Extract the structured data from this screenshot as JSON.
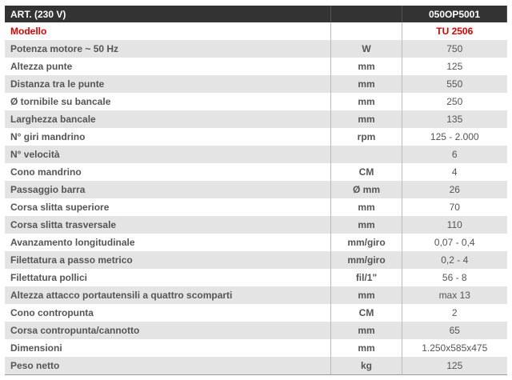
{
  "header": {
    "label": "ART. (230 V)",
    "unit": "",
    "value": "050OP5001"
  },
  "model": {
    "label": "Modello",
    "unit": "",
    "value": "TU 2506",
    "color": "#e00000"
  },
  "rows": [
    {
      "label": "Potenza motore ~ 50 Hz",
      "unit": "W",
      "value": "750"
    },
    {
      "label": "Altezza punte",
      "unit": "mm",
      "value": "125"
    },
    {
      "label": "Distanza tra le punte",
      "unit": "mm",
      "value": "550"
    },
    {
      "label": "Ø tornibile su bancale",
      "unit": "mm",
      "value": "250"
    },
    {
      "label": "Larghezza bancale",
      "unit": "mm",
      "value": "135"
    },
    {
      "label": "N° giri mandrino",
      "unit": "rpm",
      "value": "125 - 2.000"
    },
    {
      "label": "N° velocità",
      "unit": "",
      "value": "6"
    },
    {
      "label": "Cono mandrino",
      "unit": "CM",
      "value": "4"
    },
    {
      "label": "Passaggio barra",
      "unit": "Ø mm",
      "value": "26"
    },
    {
      "label": "Corsa slitta superiore",
      "unit": "mm",
      "value": "70"
    },
    {
      "label": "Corsa slitta trasversale",
      "unit": "mm",
      "value": "110"
    },
    {
      "label": "Avanzamento longitudinale",
      "unit": "mm/giro",
      "value": "0,07 - 0,4"
    },
    {
      "label": "Filettatura a passo metrico",
      "unit": "mm/giro",
      "value": "0,2 - 4"
    },
    {
      "label": "Filettatura pollici",
      "unit": "fil/1\"",
      "value": "56 - 8"
    },
    {
      "label": "Altezza attacco portautensili a quattro scomparti",
      "unit": "mm",
      "value": "max 13"
    },
    {
      "label": "Cono contropunta",
      "unit": "CM",
      "value": "2"
    },
    {
      "label": "Corsa contropunta/cannotto",
      "unit": "mm",
      "value": "65"
    },
    {
      "label": "Dimensioni",
      "unit": "mm",
      "value": "1.250x585x475"
    },
    {
      "label": "Peso netto",
      "unit": "kg",
      "value": "125"
    }
  ]
}
